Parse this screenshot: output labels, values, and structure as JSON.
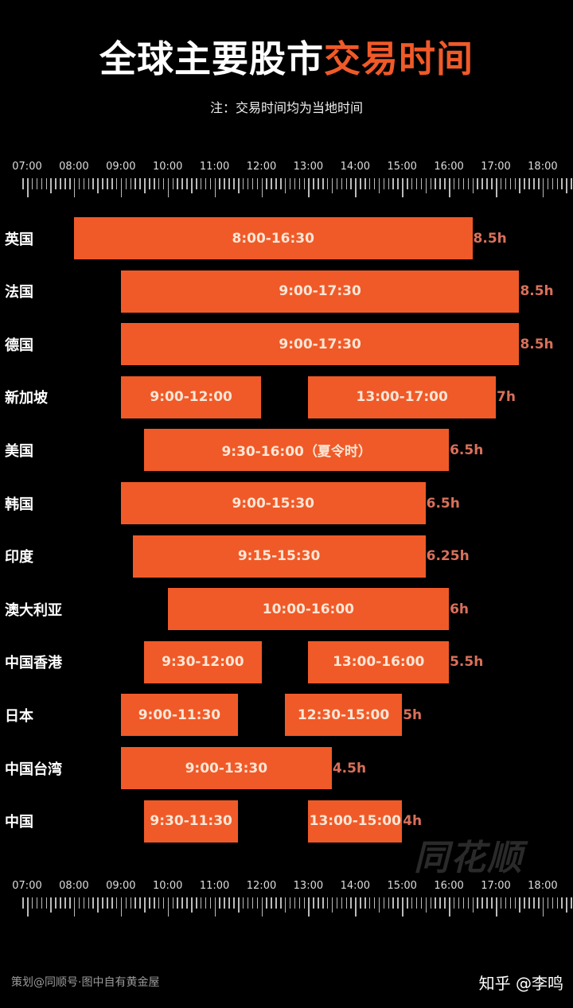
{
  "header": {
    "title_main": "全球主要股市",
    "title_highlight": "交易时间",
    "subtitle": "注：交易时间均为当地时间"
  },
  "axis": {
    "ticks": [
      "07:00",
      "08:00",
      "09:00",
      "10:00",
      "11:00",
      "12:00",
      "13:00",
      "14:00",
      "15:00",
      "16:00",
      "17:00",
      "18:00"
    ]
  },
  "rows": [
    {
      "label": "英国",
      "sessions": [
        "8:00-16:30"
      ],
      "duration": "8.5h"
    },
    {
      "label": "法国",
      "sessions": [
        "9:00-17:30"
      ],
      "duration": "8.5h"
    },
    {
      "label": "德国",
      "sessions": [
        "9:00-17:30"
      ],
      "duration": "8.5h"
    },
    {
      "label": "新加坡",
      "sessions": [
        "9:00-12:00",
        "13:00-17:00"
      ],
      "duration": "7h"
    },
    {
      "label": "美国",
      "sessions": [
        "9:30-16:00（夏令时）"
      ],
      "duration": "6.5h"
    },
    {
      "label": "韩国",
      "sessions": [
        "9:00-15:30"
      ],
      "duration": "6.5h"
    },
    {
      "label": "印度",
      "sessions": [
        "9:15-15:30"
      ],
      "duration": "6.25h"
    },
    {
      "label": "澳大利亚",
      "sessions": [
        "10:00-16:00"
      ],
      "duration": "6h"
    },
    {
      "label": "中国香港",
      "sessions": [
        "9:30-12:00",
        "13:00-16:00"
      ],
      "duration": "5.5h"
    },
    {
      "label": "日本",
      "sessions": [
        "9:00-11:30",
        "12:30-15:00"
      ],
      "duration": "5h"
    },
    {
      "label": "中国台湾",
      "sessions": [
        "9:00-13:30"
      ],
      "duration": "4.5h"
    },
    {
      "label": "中国",
      "sessions": [
        "9:30-11:30",
        "13:00-15:00"
      ],
      "duration": "4h"
    }
  ],
  "footer": {
    "watermark": "同花顺",
    "credit": "策划@同顺号·图中自有黄金屋",
    "zhihu": "知乎 @李鸣"
  },
  "colors": {
    "background": "#000000",
    "bar": "#F05A28",
    "bar_text": "#FCE6D6",
    "duration_text": "#D9705A",
    "title_highlight": "#F05A28"
  },
  "chart_data": {
    "type": "bar",
    "subtype": "gantt-horizontal",
    "title": "全球主要股市交易时间",
    "subtitle": "注：交易时间均为当地时间",
    "xlabel": "",
    "ylabel": "",
    "xlim": [
      "07:00",
      "18:00"
    ],
    "x_ticks": [
      "07:00",
      "08:00",
      "09:00",
      "10:00",
      "11:00",
      "12:00",
      "13:00",
      "14:00",
      "15:00",
      "16:00",
      "17:00",
      "18:00"
    ],
    "categories": [
      "英国",
      "法国",
      "德国",
      "新加坡",
      "美国",
      "韩国",
      "印度",
      "澳大利亚",
      "中国香港",
      "日本",
      "中国台湾",
      "中国"
    ],
    "series": [
      {
        "name": "英国",
        "sessions": [
          [
            8.0,
            16.5
          ]
        ],
        "label": [
          "8:00-16:30"
        ],
        "duration_h": 8.5
      },
      {
        "name": "法国",
        "sessions": [
          [
            9.0,
            17.5
          ]
        ],
        "label": [
          "9:00-17:30"
        ],
        "duration_h": 8.5
      },
      {
        "name": "德国",
        "sessions": [
          [
            9.0,
            17.5
          ]
        ],
        "label": [
          "9:00-17:30"
        ],
        "duration_h": 8.5
      },
      {
        "name": "新加坡",
        "sessions": [
          [
            9.0,
            12.0
          ],
          [
            13.0,
            17.0
          ]
        ],
        "label": [
          "9:00-12:00",
          "13:00-17:00"
        ],
        "duration_h": 7
      },
      {
        "name": "美国",
        "sessions": [
          [
            9.5,
            16.0
          ]
        ],
        "label": [
          "9:30-16:00（夏令时）"
        ],
        "duration_h": 6.5
      },
      {
        "name": "韩国",
        "sessions": [
          [
            9.0,
            15.5
          ]
        ],
        "label": [
          "9:00-15:30"
        ],
        "duration_h": 6.5
      },
      {
        "name": "印度",
        "sessions": [
          [
            9.25,
            15.5
          ]
        ],
        "label": [
          "9:15-15:30"
        ],
        "duration_h": 6.25
      },
      {
        "name": "澳大利亚",
        "sessions": [
          [
            10.0,
            16.0
          ]
        ],
        "label": [
          "10:00-16:00"
        ],
        "duration_h": 6
      },
      {
        "name": "中国香港",
        "sessions": [
          [
            9.5,
            12.0
          ],
          [
            13.0,
            16.0
          ]
        ],
        "label": [
          "9:30-12:00",
          "13:00-16:00"
        ],
        "duration_h": 5.5
      },
      {
        "name": "日本",
        "sessions": [
          [
            9.0,
            11.5
          ],
          [
            12.5,
            15.0
          ]
        ],
        "label": [
          "9:00-11:30",
          "12:30-15:00"
        ],
        "duration_h": 5
      },
      {
        "name": "中国台湾",
        "sessions": [
          [
            9.0,
            13.5
          ]
        ],
        "label": [
          "9:00-13:30"
        ],
        "duration_h": 4.5
      },
      {
        "name": "中国",
        "sessions": [
          [
            9.5,
            11.5
          ],
          [
            13.0,
            15.0
          ]
        ],
        "label": [
          "9:30-11:30",
          "13:00-15:00"
        ],
        "duration_h": 4
      }
    ],
    "grid": false,
    "legend": null
  }
}
